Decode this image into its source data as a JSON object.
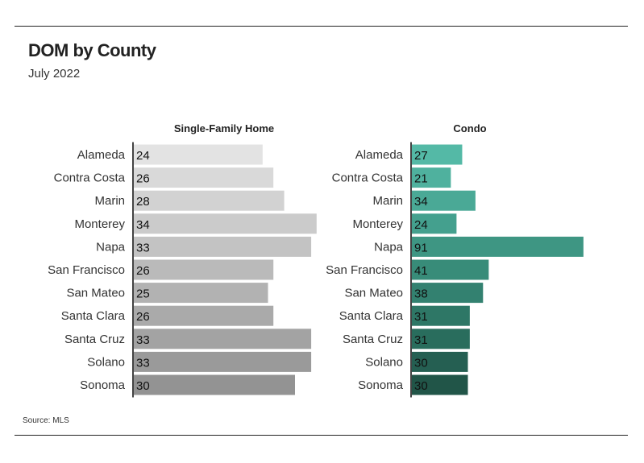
{
  "header": {
    "title": "DOM by County",
    "subtitle": "July 2022"
  },
  "footer": {
    "source": "Source:  MLS"
  },
  "chart_data": [
    {
      "type": "bar",
      "orientation": "horizontal",
      "title": "Single-Family Home",
      "categories": [
        "Alameda",
        "Contra Costa",
        "Marin",
        "Monterey",
        "Napa",
        "San Francisco",
        "San Mateo",
        "Santa Clara",
        "Santa Cruz",
        "Solano",
        "Sonoma"
      ],
      "values": [
        24,
        26,
        28,
        34,
        33,
        26,
        25,
        26,
        33,
        33,
        30
      ],
      "colors": [
        "#e3e3e3",
        "#d9d9d9",
        "#d2d2d2",
        "#cbcbcb",
        "#c3c3c3",
        "#bababa",
        "#b2b2b2",
        "#aaaaaa",
        "#a3a3a3",
        "#9a9a9a",
        "#939393"
      ],
      "xlim": [
        0,
        36
      ],
      "grid": false,
      "data_labels": "inside-left"
    },
    {
      "type": "bar",
      "orientation": "horizontal",
      "title": "Condo",
      "categories": [
        "Alameda",
        "Contra Costa",
        "Marin",
        "Monterey",
        "Napa",
        "San Francisco",
        "San Mateo",
        "Santa Clara",
        "Santa Cruz",
        "Solano",
        "Sonoma"
      ],
      "values": [
        27,
        21,
        34,
        24,
        91,
        41,
        38,
        31,
        31,
        30,
        30
      ],
      "colors": [
        "#54b9a6",
        "#4fb19e",
        "#4aa996",
        "#44a08e",
        "#3e9683",
        "#388c79",
        "#338170",
        "#2e7766",
        "#296d5d",
        "#255f52",
        "#215548"
      ],
      "xlim": [
        0,
        96
      ],
      "grid": false,
      "data_labels": "inside-left"
    }
  ]
}
